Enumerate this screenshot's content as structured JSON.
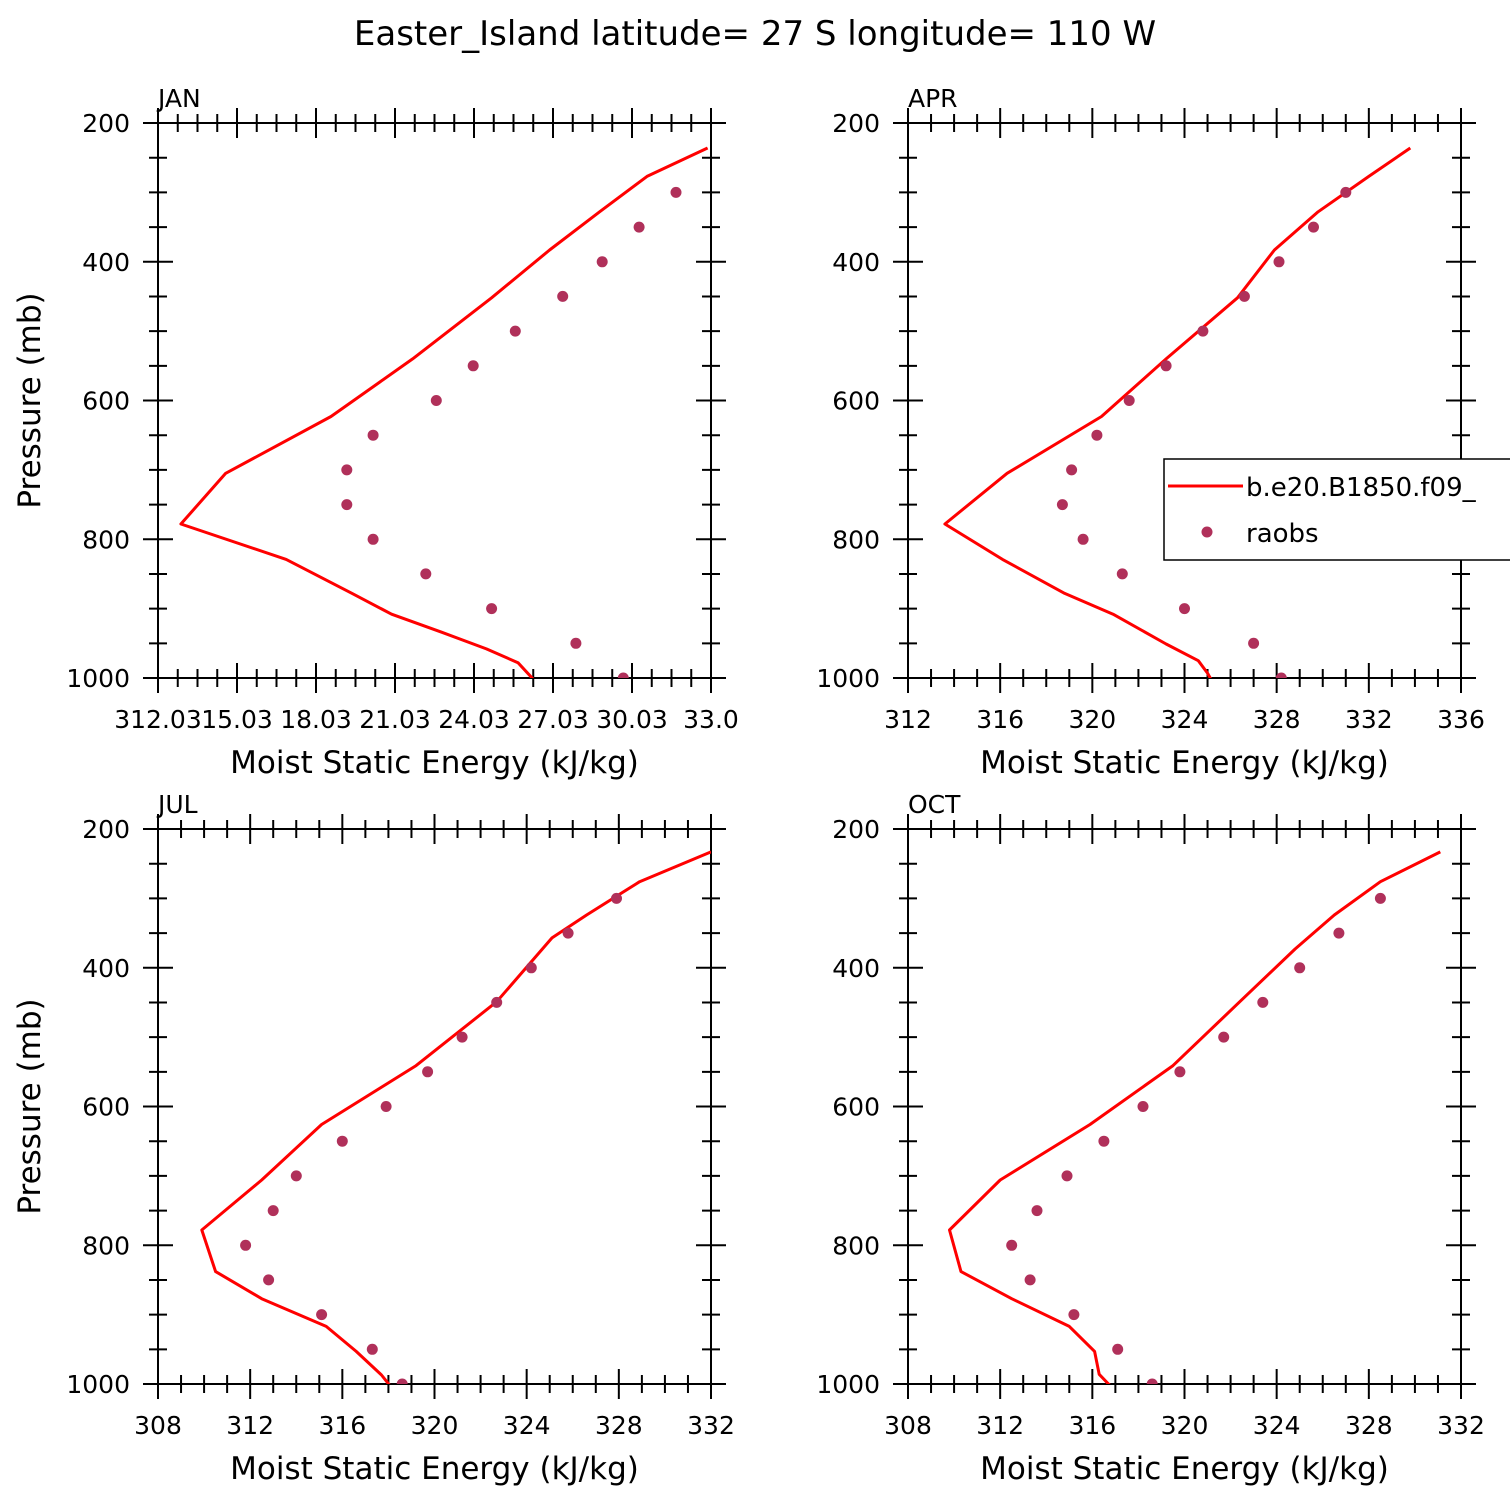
{
  "title": "Easter_Island  latitude= 27 S longitude= 110 W",
  "colors": {
    "model": "#ff0000",
    "obs": "#b0305a",
    "axis": "#000000"
  },
  "legend": {
    "position": "right-of-APR-panel",
    "model_label": "b.e20.B1850.f09_",
    "obs_label": "raobs"
  },
  "chart_data": [
    {
      "type": "line",
      "title": "JAN",
      "xlabel": "Moist Static Energy (kJ/kg)",
      "ylabel": "Pressure (mb)",
      "xlim": [
        312.03,
        333.03
      ],
      "ylim": [
        1000,
        200
      ],
      "xticks": [
        312.03,
        315.03,
        318.03,
        321.03,
        324.03,
        327.03,
        330.03,
        333.03
      ],
      "xtick_labels": [
        "312.03",
        "15.03",
        "18.03",
        "21.03",
        "24.03",
        "27.03",
        "30.03",
        "33.0"
      ],
      "yticks": [
        200,
        400,
        600,
        800,
        1000
      ],
      "ytick_labels": [
        "200",
        "400",
        "600",
        "800",
        "1000"
      ],
      "series": [
        {
          "name": "b.e20.B1850.f09_",
          "kind": "line",
          "x": [
            332.9,
            330.6,
            328.8,
            326.9,
            324.7,
            321.7,
            318.6,
            314.6,
            312.9,
            316.9,
            319.4,
            320.9,
            322.8,
            324.5,
            325.7,
            326.6
          ],
          "y": [
            236,
            277,
            328,
            383,
            452,
            540,
            623,
            705,
            778,
            829,
            878,
            908,
            934,
            958,
            978,
            1015
          ]
        },
        {
          "name": "raobs",
          "kind": "scatter",
          "x": [
            331.7,
            330.3,
            328.9,
            327.4,
            325.6,
            324.0,
            322.6,
            320.2,
            319.2,
            319.2,
            320.2,
            322.2,
            324.7,
            327.9,
            329.7
          ],
          "y": [
            300,
            350,
            400,
            450,
            500,
            550,
            600,
            650,
            700,
            750,
            800,
            850,
            900,
            950,
            1000
          ]
        }
      ]
    },
    {
      "type": "line",
      "title": "APR",
      "xlabel": "Moist Static Energy (kJ/kg)",
      "ylabel": "",
      "xlim": [
        312,
        336
      ],
      "ylim": [
        1000,
        200
      ],
      "xticks": [
        312,
        316,
        320,
        324,
        328,
        332,
        336
      ],
      "xtick_labels": [
        "312",
        "316",
        "320",
        "324",
        "328",
        "332",
        "336"
      ],
      "yticks": [
        200,
        400,
        600,
        800,
        1000
      ],
      "ytick_labels": [
        "200",
        "400",
        "600",
        "800",
        "1000"
      ],
      "series": [
        {
          "name": "b.e20.B1850.f09_",
          "kind": "line",
          "x": [
            333.8,
            332.0,
            329.8,
            327.9,
            326.3,
            323.2,
            320.4,
            316.3,
            313.6,
            316.1,
            318.8,
            320.9,
            323.2,
            324.6,
            325.0,
            325.3
          ],
          "y": [
            236,
            277,
            328,
            383,
            452,
            540,
            623,
            705,
            778,
            829,
            878,
            908,
            951,
            975,
            993,
            1011
          ]
        },
        {
          "name": "raobs",
          "kind": "scatter",
          "x": [
            331.0,
            329.6,
            328.1,
            326.6,
            324.8,
            323.2,
            321.6,
            320.2,
            319.1,
            318.7,
            319.6,
            321.3,
            324.0,
            327.0,
            328.2
          ],
          "y": [
            300,
            350,
            400,
            450,
            500,
            550,
            600,
            650,
            700,
            750,
            800,
            850,
            900,
            950,
            1000
          ]
        }
      ]
    },
    {
      "type": "line",
      "title": "JUL",
      "xlabel": "Moist Static Energy (kJ/kg)",
      "ylabel": "Pressure (mb)",
      "xlim": [
        308,
        332
      ],
      "ylim": [
        1000,
        200
      ],
      "xticks": [
        308,
        312,
        316,
        320,
        324,
        328,
        332
      ],
      "xtick_labels": [
        "308",
        "312",
        "316",
        "320",
        "324",
        "328",
        "332"
      ],
      "yticks": [
        200,
        400,
        600,
        800,
        1000
      ],
      "ytick_labels": [
        "200",
        "400",
        "600",
        "800",
        "1000"
      ],
      "series": [
        {
          "name": "b.e20.B1850.f09_",
          "kind": "line",
          "x": [
            332.0,
            328.9,
            326.6,
            325.1,
            322.7,
            319.2,
            315.1,
            312.5,
            309.9,
            310.5,
            312.5,
            315.3,
            316.6,
            317.7,
            318.3,
            318.7
          ],
          "y": [
            233,
            276,
            324,
            357,
            449,
            541,
            626,
            706,
            778,
            838,
            877,
            917,
            953,
            987,
            1012,
            1030
          ]
        },
        {
          "name": "raobs",
          "kind": "scatter",
          "x": [
            327.9,
            325.8,
            324.2,
            322.7,
            321.2,
            319.7,
            317.9,
            316.0,
            314.0,
            313.0,
            311.8,
            312.8,
            315.1,
            317.3,
            318.6
          ],
          "y": [
            300,
            350,
            400,
            450,
            500,
            550,
            600,
            650,
            700,
            750,
            800,
            850,
            900,
            950,
            1000
          ]
        }
      ]
    },
    {
      "type": "line",
      "title": "OCT",
      "xlabel": "Moist Static Energy (kJ/kg)",
      "ylabel": "",
      "xlim": [
        308,
        332
      ],
      "ylim": [
        1000,
        200
      ],
      "xticks": [
        308,
        312,
        316,
        320,
        324,
        328,
        332
      ],
      "xtick_labels": [
        "308",
        "312",
        "316",
        "320",
        "324",
        "328",
        "332"
      ],
      "yticks": [
        200,
        400,
        600,
        800,
        1000
      ],
      "ytick_labels": [
        "200",
        "400",
        "600",
        "800",
        "1000"
      ],
      "series": [
        {
          "name": "b.e20.B1850.f09_",
          "kind": "line",
          "x": [
            331.1,
            328.5,
            326.5,
            324.8,
            322.4,
            319.5,
            315.9,
            312.0,
            309.8,
            310.3,
            312.5,
            315.0,
            316.1,
            316.3,
            316.7,
            317.1
          ],
          "y": [
            233,
            276,
            324,
            373,
            449,
            541,
            626,
            706,
            778,
            838,
            877,
            917,
            953,
            986,
            1000,
            1012
          ]
        },
        {
          "name": "raobs",
          "kind": "scatter",
          "x": [
            328.5,
            326.7,
            325.0,
            323.4,
            321.7,
            319.8,
            318.2,
            316.5,
            314.9,
            313.6,
            312.5,
            313.3,
            315.2,
            317.1,
            318.6
          ],
          "y": [
            300,
            350,
            400,
            450,
            500,
            550,
            600,
            650,
            700,
            750,
            800,
            850,
            900,
            950,
            1000
          ]
        }
      ]
    }
  ]
}
